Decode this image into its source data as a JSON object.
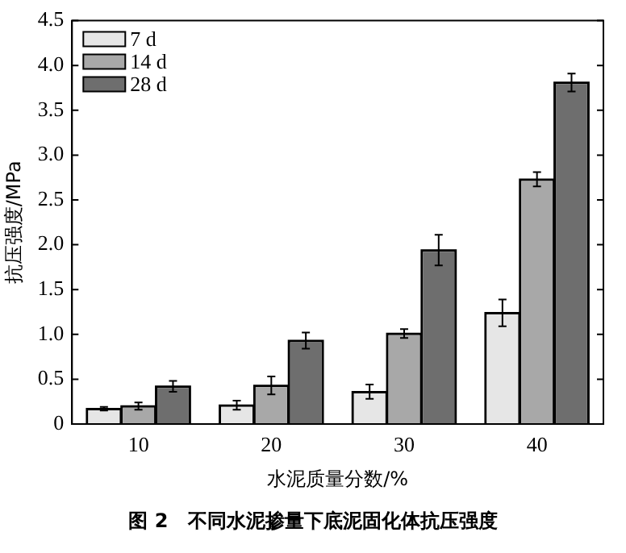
{
  "chart_data": {
    "type": "bar",
    "xlabel": "水泥质量分数/%",
    "ylabel": "抗压强度/MPa",
    "categories": [
      "10",
      "20",
      "30",
      "40"
    ],
    "series": [
      {
        "name": "7 d",
        "color": "#e6e6e6",
        "values": [
          0.17,
          0.21,
          0.36,
          1.24
        ],
        "errors": [
          0.02,
          0.05,
          0.08,
          0.15
        ]
      },
      {
        "name": "14 d",
        "color": "#a8a8a8",
        "values": [
          0.2,
          0.43,
          1.01,
          2.73
        ],
        "errors": [
          0.04,
          0.1,
          0.05,
          0.08
        ]
      },
      {
        "name": "28 d",
        "color": "#6e6e6e",
        "values": [
          0.42,
          0.93,
          1.94,
          3.81
        ],
        "errors": [
          0.06,
          0.09,
          0.17,
          0.1
        ]
      }
    ],
    "ylim": [
      0,
      4.5
    ],
    "yticks": [
      0,
      0.5,
      {
        "value": 1,
        "label": "1.0"
      },
      1.5,
      {
        "value": 2,
        "label": "2.0"
      },
      2.5,
      {
        "value": 3,
        "label": "3.0"
      },
      3.5,
      {
        "value": 4,
        "label": "4.0"
      },
      4.5
    ],
    "grid": false,
    "legend": "top left",
    "annotations": [
      "图 2　不同水泥掺量下底泥固化体抗压强度"
    ]
  }
}
